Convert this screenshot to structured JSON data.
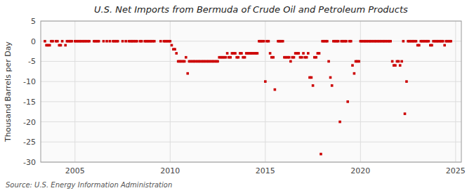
{
  "chart_data": {
    "type": "scatter",
    "title": "U.S. Net Imports from Bermuda of Crude Oil and Petroleum Products",
    "y_label": "Thousand Barrels per Day",
    "source": "Source: U.S. Energy Information Administration",
    "color": "#cc0000",
    "marker": "square",
    "grid": true,
    "xlim": [
      2003.2,
      2025.3
    ],
    "ylim": [
      -30,
      5
    ],
    "xticks": [
      2005,
      2010,
      2015,
      2020,
      2025
    ],
    "yticks": [
      5,
      0,
      -5,
      -10,
      -15,
      -20,
      -25,
      -30
    ],
    "x": [
      2003.42,
      2003.5,
      2003.58,
      2003.67,
      2003.75,
      2003.83,
      2004.0,
      2004.08,
      2004.17,
      2004.25,
      2004.33,
      2004.5,
      2004.58,
      2004.67,
      2004.75,
      2004.83,
      2005.0,
      2005.08,
      2005.17,
      2005.25,
      2005.33,
      2005.42,
      2005.5,
      2005.58,
      2005.67,
      2005.75,
      2006.0,
      2006.08,
      2006.17,
      2006.25,
      2006.5,
      2006.67,
      2006.83,
      2007.0,
      2007.08,
      2007.17,
      2007.25,
      2007.5,
      2007.67,
      2007.83,
      2007.92,
      2008.0,
      2008.08,
      2008.17,
      2008.25,
      2008.42,
      2008.5,
      2008.67,
      2008.75,
      2008.83,
      2008.92,
      2009.0,
      2009.08,
      2009.17,
      2009.5,
      2009.67,
      2009.75,
      2009.83,
      2009.92,
      2010.0,
      2010.08,
      2010.17,
      2010.25,
      2010.33,
      2010.42,
      2010.5,
      2010.58,
      2010.67,
      2010.75,
      2010.83,
      2010.92,
      2011.0,
      2011.08,
      2011.17,
      2011.25,
      2011.33,
      2011.42,
      2011.5,
      2011.58,
      2011.67,
      2011.75,
      2011.83,
      2011.92,
      2012.0,
      2012.08,
      2012.17,
      2012.25,
      2012.33,
      2012.42,
      2012.5,
      2012.58,
      2012.67,
      2012.75,
      2012.83,
      2012.92,
      2013.0,
      2013.08,
      2013.17,
      2013.25,
      2013.33,
      2013.42,
      2013.5,
      2013.58,
      2013.67,
      2013.75,
      2013.83,
      2013.92,
      2014.0,
      2014.08,
      2014.17,
      2014.25,
      2014.33,
      2014.42,
      2014.5,
      2014.58,
      2014.67,
      2014.75,
      2014.83,
      2014.92,
      2015.0,
      2015.08,
      2015.17,
      2015.25,
      2015.33,
      2015.42,
      2015.5,
      2015.67,
      2015.75,
      2015.83,
      2015.92,
      2016.0,
      2016.08,
      2016.17,
      2016.25,
      2016.33,
      2016.42,
      2016.5,
      2016.58,
      2016.67,
      2016.75,
      2016.83,
      2016.92,
      2017.0,
      2017.08,
      2017.17,
      2017.25,
      2017.33,
      2017.42,
      2017.5,
      2017.58,
      2017.67,
      2017.75,
      2017.83,
      2017.92,
      2018.0,
      2018.08,
      2018.17,
      2018.25,
      2018.33,
      2018.42,
      2018.5,
      2018.58,
      2018.67,
      2018.75,
      2018.83,
      2018.92,
      2019.0,
      2019.08,
      2019.17,
      2019.25,
      2019.33,
      2019.42,
      2019.5,
      2019.58,
      2019.67,
      2019.75,
      2019.83,
      2019.92,
      2020.0,
      2020.08,
      2020.17,
      2020.25,
      2020.33,
      2020.42,
      2020.5,
      2020.58,
      2020.67,
      2020.75,
      2020.83,
      2020.92,
      2021.0,
      2021.08,
      2021.17,
      2021.25,
      2021.33,
      2021.42,
      2021.5,
      2021.58,
      2021.67,
      2021.75,
      2021.83,
      2021.92,
      2022.0,
      2022.08,
      2022.17,
      2022.25,
      2022.33,
      2022.42,
      2022.5,
      2022.58,
      2022.67,
      2022.75,
      2022.83,
      2022.92,
      2023.0,
      2023.08,
      2023.17,
      2023.25,
      2023.33,
      2023.42,
      2023.5,
      2023.58,
      2023.67,
      2023.75,
      2023.83,
      2023.92,
      2024.0,
      2024.08,
      2024.17,
      2024.25,
      2024.33,
      2024.42,
      2024.5,
      2024.58,
      2024.67,
      2024.75
    ],
    "values": [
      0,
      -1,
      -1,
      -1,
      0,
      0,
      0,
      0,
      -1,
      -1,
      0,
      -1,
      0,
      0,
      0,
      0,
      0,
      0,
      0,
      0,
      0,
      0,
      0,
      0,
      0,
      0,
      0,
      0,
      0,
      0,
      0,
      0,
      0,
      0,
      0,
      0,
      0,
      0,
      0,
      0,
      0,
      0,
      0,
      0,
      0,
      0,
      0,
      0,
      0,
      0,
      0,
      0,
      0,
      0,
      0,
      0,
      0,
      0,
      0,
      0,
      -1,
      -2,
      -2,
      -3,
      -5,
      -5,
      -5,
      -5,
      -5,
      -4,
      -8,
      -5,
      -5,
      -5,
      -5,
      -5,
      -5,
      -5,
      -5,
      -5,
      -5,
      -5,
      -5,
      -5,
      -5,
      -5,
      -5,
      -5,
      -5,
      -5,
      -4,
      -4,
      -4,
      -4,
      -4,
      -3,
      -4,
      -4,
      -3,
      -3,
      -3,
      -4,
      -4,
      -3,
      -3,
      -4,
      -4,
      -3,
      -3,
      -3,
      -3,
      -3,
      -3,
      -3,
      -3,
      0,
      0,
      0,
      0,
      -10,
      0,
      0,
      -3,
      -4,
      -4,
      -12,
      0,
      0,
      0,
      0,
      -4,
      -4,
      -4,
      -4,
      -5,
      -4,
      -4,
      -3,
      -3,
      -3,
      -4,
      -4,
      -3,
      -4,
      -4,
      -3,
      -9,
      -9,
      -11,
      -4,
      -4,
      -3,
      -3,
      -28,
      0,
      0,
      0,
      0,
      -5,
      -9,
      -11,
      0,
      0,
      0,
      0,
      -20,
      0,
      0,
      0,
      0,
      -15,
      0,
      0,
      -6,
      -8,
      -5,
      -5,
      -5,
      0,
      0,
      0,
      0,
      0,
      0,
      0,
      0,
      0,
      0,
      0,
      0,
      0,
      0,
      0,
      0,
      0,
      0,
      0,
      0,
      -5,
      -6,
      -6,
      -5,
      -5,
      -6,
      -5,
      0,
      -18,
      -10,
      0,
      0,
      0,
      0,
      0,
      0,
      -1,
      -1,
      0,
      0,
      0,
      0,
      0,
      0,
      -1,
      -1,
      0,
      0,
      0,
      0,
      0,
      0,
      0,
      -1,
      0,
      0,
      0,
      0
    ]
  }
}
